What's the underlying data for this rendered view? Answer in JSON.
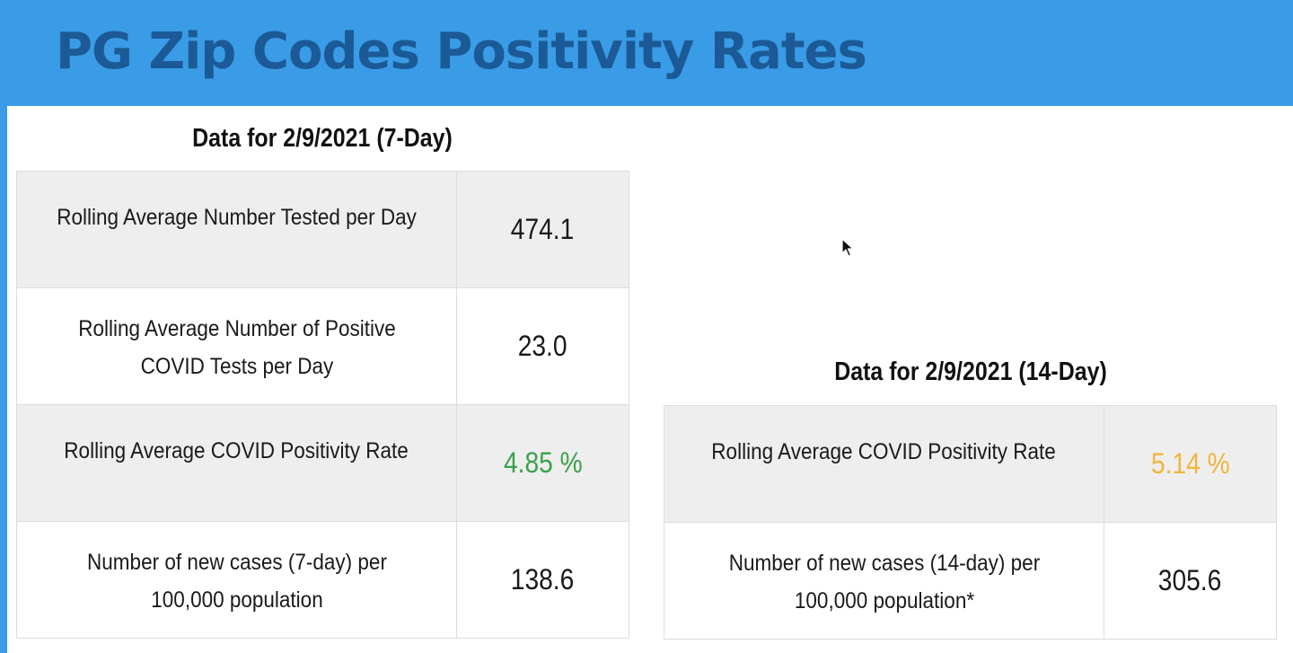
{
  "page": {
    "title": "PG Zip Codes Positivity Rates"
  },
  "seven_day": {
    "heading": "Data for 2/9/2021 (7-Day)",
    "rows": [
      {
        "label": "Rolling Average Number Tested per Day",
        "value": "474.1"
      },
      {
        "label": "Rolling Average Number of Positive COVID Tests per Day",
        "value": "23.0"
      },
      {
        "label": "Rolling Average COVID Positivity Rate",
        "value": "4.85 %",
        "value_color": "#3aa14a"
      },
      {
        "label": "Number of new cases (7-day) per 100,000 population",
        "value": "138.6"
      }
    ]
  },
  "fourteen_day": {
    "heading": "Data for 2/9/2021 (14-Day)",
    "rows": [
      {
        "label": "Rolling Average COVID Positivity Rate",
        "value": "5.14 %",
        "value_color": "#f2b53c"
      },
      {
        "label": "Number of new cases (14-day) per 100,000 population*",
        "value": "305.6"
      }
    ]
  },
  "colors": {
    "header_bg": "#3a9be6",
    "title_text": "#1b5a96",
    "row_shade": "#eeeeee"
  }
}
